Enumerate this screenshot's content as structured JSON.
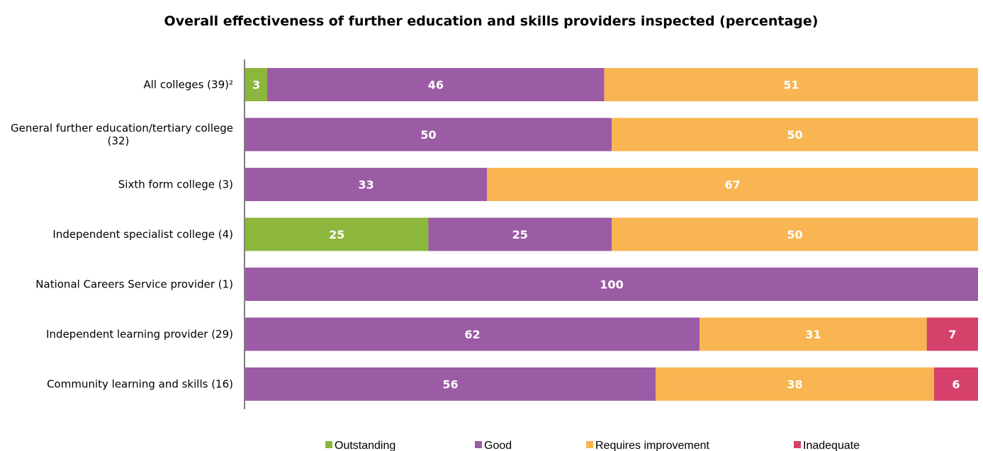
{
  "chart_data": {
    "type": "bar",
    "orientation": "horizontal",
    "stacked": true,
    "title": "Overall effectiveness of further education and skills providers inspected (percentage)",
    "xlabel": "",
    "ylabel": "",
    "xlim": [
      0,
      100
    ],
    "grid": false,
    "legend_position": "bottom",
    "categories": [
      [
        "All colleges (39)²"
      ],
      [
        "General further education/tertiary college",
        "(32)"
      ],
      [
        "Sixth form college (3)"
      ],
      [
        "Independent specialist college (4)"
      ],
      [
        "National Careers Service provider (1)"
      ],
      [
        "Independent learning provider (29)"
      ],
      [
        "Community learning and skills (16)"
      ]
    ],
    "series": [
      {
        "name": "Outstanding",
        "color": "#8DB63C",
        "values": [
          3,
          0,
          0,
          25,
          0,
          0,
          0
        ]
      },
      {
        "name": "Good",
        "color": "#9B5BA5",
        "values": [
          46,
          50,
          33,
          25,
          100,
          62,
          56
        ]
      },
      {
        "name": "Requires improvement",
        "color": "#F8B551",
        "values": [
          51,
          50,
          67,
          50,
          0,
          31,
          38
        ]
      },
      {
        "name": "Inadequate",
        "color": "#D5416B",
        "values": [
          0,
          0,
          0,
          0,
          0,
          7,
          6
        ]
      }
    ]
  }
}
